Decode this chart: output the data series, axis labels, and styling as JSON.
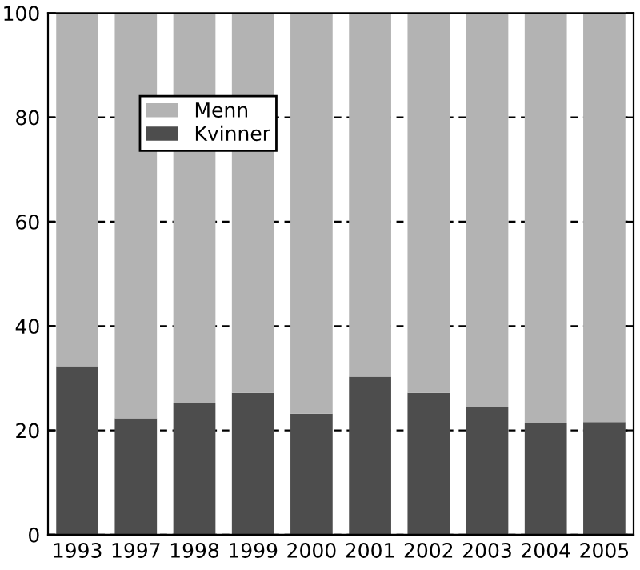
{
  "chart_data": {
    "type": "bar",
    "stacked": true,
    "categories": [
      "1993",
      "1997",
      "1998",
      "1999",
      "2000",
      "2001",
      "2002",
      "2003",
      "2004",
      "2005"
    ],
    "series": [
      {
        "name": "Kvinner",
        "color": "#4d4d4d",
        "values": [
          32.3,
          22.3,
          25.3,
          27.2,
          23.2,
          30.3,
          27.2,
          24.4,
          21.3,
          21.6
        ]
      },
      {
        "name": "Menn",
        "color": "#b3b3b3",
        "values": [
          67.7,
          77.7,
          74.7,
          72.8,
          76.8,
          69.7,
          72.8,
          75.6,
          78.7,
          78.4
        ]
      }
    ],
    "ylim": [
      0,
      100
    ],
    "yticks": [
      0,
      20,
      40,
      60,
      80,
      100
    ],
    "grid": "y",
    "legend": "top left"
  }
}
